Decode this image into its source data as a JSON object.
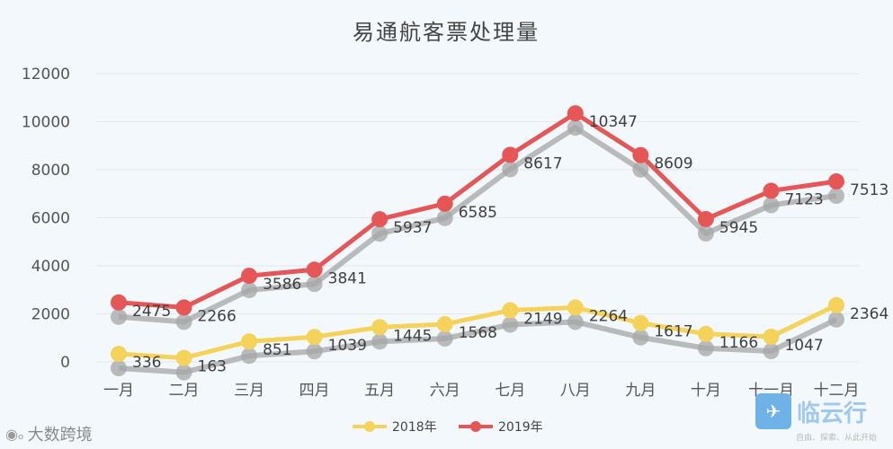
{
  "chart_data": {
    "type": "line",
    "title": "易通航客票处理量",
    "categories": [
      "一月",
      "二月",
      "三月",
      "四月",
      "五月",
      "六月",
      "七月",
      "八月",
      "九月",
      "十月",
      "十一月",
      "十二月"
    ],
    "ylim": [
      0,
      12000
    ],
    "yticks": [
      0,
      2000,
      4000,
      6000,
      8000,
      10000,
      12000
    ],
    "grid": true,
    "legend": "bottom-center",
    "series": [
      {
        "name": "2018年",
        "color": "#f5d35a",
        "shadow": "#a6a6a6",
        "values": [
          336,
          163,
          851,
          1039,
          1445,
          1568,
          2149,
          2264,
          1617,
          1166,
          1047,
          2364
        ],
        "labels": [
          "336",
          "163",
          "851",
          "1039",
          "1445",
          "1568",
          "2149",
          "2264",
          "1617",
          "1166",
          "1047",
          "2364"
        ]
      },
      {
        "name": "2019年",
        "color": "#e65656",
        "shadow": "#a6a6a6",
        "values": [
          2475,
          2266,
          3586,
          3841,
          5937,
          6585,
          8617,
          10347,
          8609,
          5945,
          7123,
          7513
        ],
        "labels": [
          "2475",
          "2266",
          "3586",
          "3841",
          "5937",
          "6585",
          "8617",
          "10347",
          "8609",
          "5945",
          "7123",
          "7513"
        ]
      }
    ]
  },
  "watermarks": {
    "left_text": "大数跨境",
    "left_icon": "weibo-icon",
    "right_name": "临云行",
    "right_slogan": "自由、探索、从此开始",
    "right_icon": "airplane-icon"
  }
}
